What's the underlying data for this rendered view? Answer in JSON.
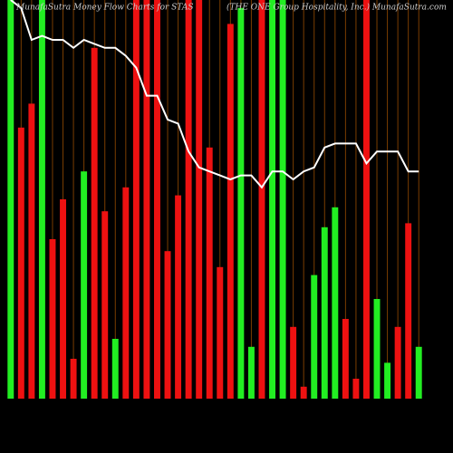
{
  "chart_data": {
    "type": "bar",
    "title": "MunafaSutra  Money Flow  Charts for STAS",
    "subtitle": "(THE ONE Group Hospitality, Inc.) MunafaSutra.com",
    "ylim": [
      0,
      100
    ],
    "grid": true,
    "grid_color": "#7a3d00",
    "background": "#000000",
    "bars": {
      "values": [
        100,
        68,
        74,
        100,
        40,
        50,
        10,
        57,
        88,
        47,
        15,
        53,
        100,
        100,
        100,
        37,
        51,
        100,
        100,
        63,
        33,
        94,
        98,
        13,
        100,
        100,
        100,
        18,
        3,
        31,
        43,
        48,
        20,
        5,
        100,
        25,
        9,
        18,
        44,
        13
      ],
      "colors": [
        "#22ee22",
        "#ee1111",
        "#ee1111",
        "#22ee22",
        "#ee1111",
        "#ee1111",
        "#ee1111",
        "#22ee22",
        "#ee1111",
        "#ee1111",
        "#22ee22",
        "#ee1111",
        "#ee1111",
        "#ee1111",
        "#ee1111",
        "#ee1111",
        "#ee1111",
        "#ee1111",
        "#ee1111",
        "#ee1111",
        "#ee1111",
        "#ee1111",
        "#22ee22",
        "#22ee22",
        "#ee1111",
        "#22ee22",
        "#22ee22",
        "#ee1111",
        "#ee1111",
        "#22ee22",
        "#22ee22",
        "#22ee22",
        "#ee1111",
        "#ee1111",
        "#ee1111",
        "#22ee22",
        "#22ee22",
        "#ee1111",
        "#ee1111",
        "#22ee22"
      ]
    },
    "line": {
      "color": "#ffffff",
      "values": [
        100,
        98,
        90,
        91,
        90,
        90,
        88,
        90,
        89,
        88,
        88,
        86,
        83,
        76,
        76,
        70,
        69,
        62,
        58,
        57,
        56,
        55,
        56,
        56,
        53,
        57,
        57,
        55,
        57,
        58,
        63,
        64,
        64,
        64,
        59,
        62,
        62,
        62,
        57,
        57
      ]
    }
  }
}
